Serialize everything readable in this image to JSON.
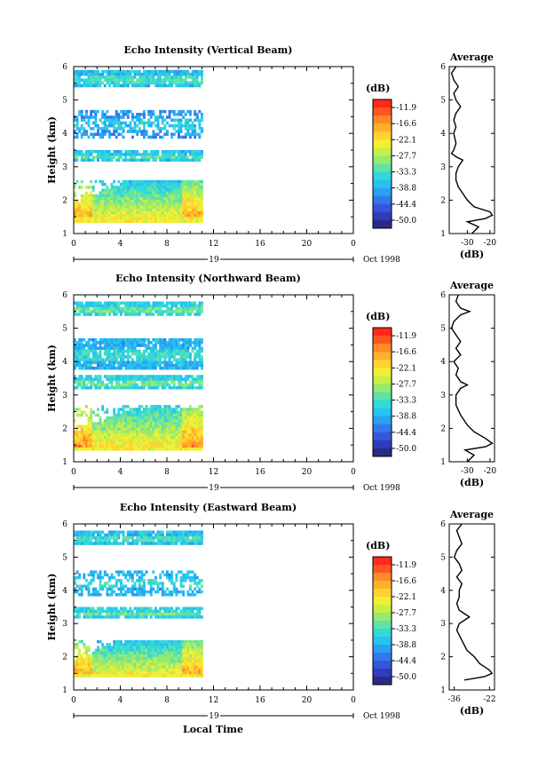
{
  "colorbar": {
    "unit": "(dB)",
    "ticks": [
      "-11.9",
      "-16.6",
      "-22.1",
      "-27.7",
      "-33.3",
      "-38.8",
      "-44.4",
      "-50.0"
    ],
    "colors": [
      "#ff2a1a",
      "#ff5522",
      "#ff8a28",
      "#ffb02a",
      "#ffd230",
      "#f2ef34",
      "#c8ee4a",
      "#96ea6e",
      "#5fe3a8",
      "#33d8d8",
      "#27c2f0",
      "#2aa1f0",
      "#3278ec",
      "#3656d8",
      "#2f3db8",
      "#2a2a88"
    ]
  },
  "x_axis": {
    "ticks": [
      "0",
      "4",
      "8",
      "12",
      "16",
      "20",
      "0"
    ],
    "date_marker": "19",
    "date_label": "Oct 1998",
    "label": "Local Time"
  },
  "y_axis": {
    "label": "Height (km)",
    "ticks": [
      "1",
      "2",
      "3",
      "4",
      "5",
      "6"
    ]
  },
  "average_panel": {
    "title": "Average",
    "xlabel": "(dB)"
  },
  "chart_data": [
    {
      "type": "heatmap",
      "title": "Echo Intensity (Vertical Beam)",
      "x_range_hours": [
        0,
        24
      ],
      "data_end_hour": 11,
      "ylim_km": [
        1,
        6
      ],
      "layers": [
        {
          "bottom_km": 1.4,
          "top_km": 2.6,
          "peak_db": -14,
          "note_hours_peak": [
            0,
            11
          ]
        },
        {
          "bottom_km": 3.2,
          "top_km": 3.5,
          "peak_db": -32
        },
        {
          "bottom_km": 3.9,
          "top_km": 4.7,
          "peak_db": -36,
          "sparse": true
        },
        {
          "bottom_km": 5.4,
          "top_km": 5.9,
          "peak_db": -33
        }
      ],
      "average_profile": {
        "xticks": [
          "-30",
          "-20"
        ],
        "xlim": [
          -38,
          -18
        ],
        "height_km": [
          1.0,
          1.2,
          1.35,
          1.45,
          1.55,
          1.65,
          1.8,
          2.0,
          2.2,
          2.4,
          2.6,
          2.8,
          3.0,
          3.2,
          3.3,
          3.4,
          3.5,
          3.7,
          4.0,
          4.2,
          4.4,
          4.6,
          4.8,
          5.0,
          5.2,
          5.4,
          5.6,
          5.8,
          6.0
        ],
        "db": [
          -28,
          -25,
          -30,
          -22,
          -19,
          -20,
          -27,
          -30,
          -32,
          -34,
          -35,
          -35,
          -34,
          -32,
          -35,
          -37,
          -36,
          -35,
          -36,
          -35,
          -36,
          -35,
          -33,
          -35,
          -36,
          -34,
          -36,
          -37,
          -35
        ]
      }
    },
    {
      "type": "heatmap",
      "title": "Echo Intensity (Northward Beam)",
      "x_range_hours": [
        0,
        24
      ],
      "data_end_hour": 11,
      "ylim_km": [
        1,
        6
      ],
      "layers": [
        {
          "bottom_km": 1.4,
          "top_km": 2.7,
          "peak_db": -13
        },
        {
          "bottom_km": 3.2,
          "top_km": 3.6,
          "peak_db": -31
        },
        {
          "bottom_km": 3.8,
          "top_km": 4.7,
          "peak_db": -34
        },
        {
          "bottom_km": 5.4,
          "top_km": 5.8,
          "peak_db": -31
        }
      ],
      "average_profile": {
        "xticks": [
          "-30",
          "-20"
        ],
        "xlim": [
          -38,
          -18
        ],
        "height_km": [
          1.0,
          1.2,
          1.35,
          1.45,
          1.55,
          1.7,
          1.9,
          2.1,
          2.4,
          2.7,
          3.0,
          3.2,
          3.3,
          3.4,
          3.6,
          3.8,
          4.0,
          4.2,
          4.4,
          4.6,
          4.8,
          5.0,
          5.2,
          5.4,
          5.5,
          5.6,
          5.8,
          6.0
        ],
        "db": [
          -30,
          -27,
          -31,
          -22,
          -19,
          -22,
          -27,
          -30,
          -33,
          -35,
          -35,
          -33,
          -30,
          -33,
          -35,
          -34,
          -36,
          -33,
          -35,
          -33,
          -35,
          -37,
          -36,
          -33,
          -29,
          -33,
          -35,
          -34
        ]
      }
    },
    {
      "type": "heatmap",
      "title": "Echo Intensity (Eastward Beam)",
      "x_range_hours": [
        0,
        24
      ],
      "data_end_hour": 11,
      "ylim_km": [
        1,
        6
      ],
      "layers": [
        {
          "bottom_km": 1.4,
          "top_km": 2.5,
          "peak_db": -14
        },
        {
          "bottom_km": 3.2,
          "top_km": 3.5,
          "peak_db": -31
        },
        {
          "bottom_km": 3.9,
          "top_km": 4.6,
          "peak_db": -34,
          "sparse": true
        },
        {
          "bottom_km": 5.4,
          "top_km": 5.8,
          "peak_db": -33
        }
      ],
      "average_profile": {
        "xticks": [
          "-36",
          "-22"
        ],
        "xlim": [
          -38,
          -20
        ],
        "height_km": [
          1.3,
          1.4,
          1.5,
          1.6,
          1.8,
          2.0,
          2.2,
          2.5,
          2.8,
          3.0,
          3.1,
          3.2,
          3.3,
          3.4,
          3.6,
          3.8,
          4.0,
          4.2,
          4.4,
          4.6,
          4.8,
          5.0,
          5.2,
          5.4,
          5.6,
          5.8,
          6.0
        ],
        "db": [
          -32,
          -24,
          -21,
          -22,
          -26,
          -28,
          -31,
          -33,
          -35,
          -34,
          -32,
          -30,
          -32,
          -34,
          -35,
          -34,
          -34,
          -33,
          -35,
          -33,
          -34,
          -36,
          -35,
          -33,
          -34,
          -35,
          -33
        ]
      }
    }
  ]
}
